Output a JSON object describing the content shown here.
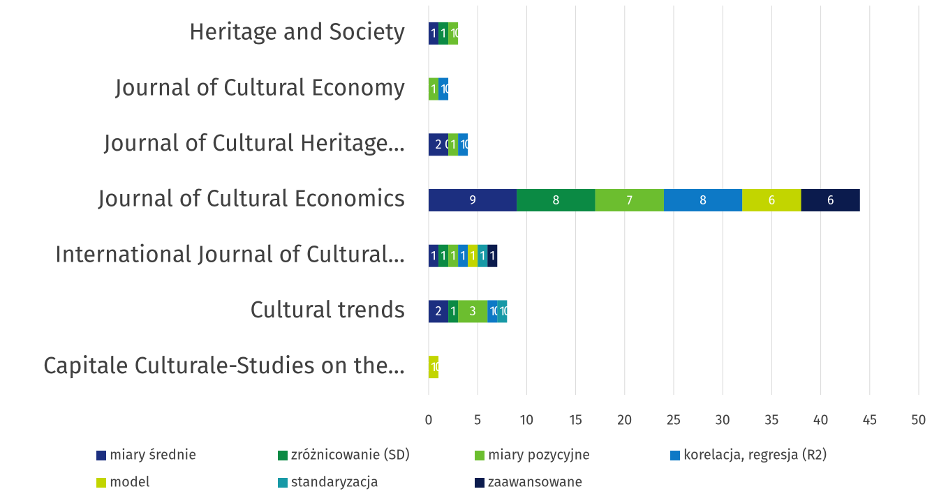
{
  "chart_data": {
    "type": "stacked-bar-horizontal",
    "categories": [
      "Heritage and Society",
      "Journal of Cultural Economy",
      "Journal of Cultural Heritage…",
      "Journal of Cultural Economics",
      "International Journal of Cultural…",
      "Cultural trends",
      "Capitale Culturale-Studies on the…"
    ],
    "series": [
      {
        "name": "miary średnie",
        "color": "#1c2f80",
        "values": [
          1,
          0,
          2,
          9,
          1,
          2,
          0
        ]
      },
      {
        "name": "zróżnicowanie (SD)",
        "color": "#0b8a44",
        "values": [
          1,
          null,
          0,
          8,
          1,
          1,
          null
        ]
      },
      {
        "name": "miary pozycyjne",
        "color": "#6cbe2f",
        "values": [
          1,
          1,
          1,
          7,
          1,
          3,
          null
        ]
      },
      {
        "name": "korelacja, regresja (R2)",
        "color": "#0d79c6",
        "values": [
          0,
          1,
          1,
          8,
          1,
          1,
          null
        ]
      },
      {
        "name": "model",
        "color": "#c2d500",
        "values": [
          null,
          0,
          0,
          6,
          1,
          0,
          1
        ]
      },
      {
        "name": "standaryzacja",
        "color": "#1799a6",
        "values": [
          null,
          null,
          null,
          null,
          1,
          1,
          0
        ]
      },
      {
        "name": "zaawansowane",
        "color": "#0b1b4d",
        "values": [
          null,
          null,
          null,
          6,
          1,
          0,
          null
        ]
      }
    ],
    "xlim": [
      0,
      50
    ],
    "xticks": [
      0,
      5,
      10,
      15,
      20,
      25,
      30,
      35,
      40,
      45,
      50
    ],
    "grid": true,
    "legend": "bottom"
  }
}
